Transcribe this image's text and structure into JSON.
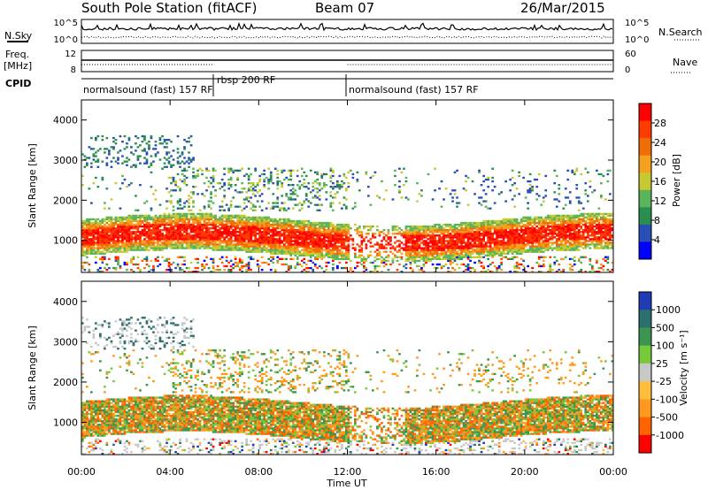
{
  "header": {
    "station": "South Pole Station (fitACF)",
    "beam": "Beam 07",
    "date": "26/Mar/2015"
  },
  "top_panels": {
    "nsky_label": "N.Sky",
    "nsearch_label": "N.Search",
    "noise_ticks_left": [
      "10^5",
      "10^0"
    ],
    "noise_ticks_right": [
      "10^5",
      "10^0"
    ],
    "freq_label_1": "Freq.",
    "freq_label_2": "[MHz]",
    "nave_label": "Nave",
    "freq_ticks": [
      "12",
      "8"
    ],
    "nave_ticks": [
      "60",
      "0"
    ],
    "cpid_label": "CPID"
  },
  "cpid_segments": [
    {
      "label": "normalsound (fast) 157 RF",
      "start": 0,
      "end": 6
    },
    {
      "label": "rbsp 200 RF",
      "start": 6,
      "end": 12
    },
    {
      "label": "normalsound (fast) 157 RF",
      "start": 12,
      "end": 24
    }
  ],
  "colors": {
    "power": [
      "#0000ff",
      "#2850b4",
      "#2a8f4e",
      "#5ab45a",
      "#c8c832",
      "#f5a01e",
      "#f06e0a",
      "#ff3c00",
      "#ff0000"
    ],
    "velocity": [
      "#ff0000",
      "#ff6400",
      "#ff9a1e",
      "#ffbe3c",
      "#c8c8c8",
      "#78c83c",
      "#3c9650",
      "#2d6e6e",
      "#1e3cb4"
    ]
  },
  "chart_data": [
    {
      "type": "heatmap",
      "quantity": "Power",
      "xlabel": "Time UT",
      "ylabel": "Slant Range [km]",
      "x_range_hours": [
        0,
        24
      ],
      "xticks": [
        "00:00",
        "04:00",
        "08:00",
        "12:00",
        "16:00",
        "20:00",
        "00:00"
      ],
      "ylim": [
        200,
        4500
      ],
      "yticks": [
        1000,
        2000,
        3000,
        4000
      ],
      "colorbar_label": "Power [dB]",
      "colorbar_ticks": [
        4,
        8,
        12,
        16,
        20,
        24,
        28
      ],
      "colorbar_range": [
        0,
        32
      ]
    },
    {
      "type": "heatmap",
      "quantity": "Velocity",
      "xlabel": "Time UT",
      "ylabel": "Slant Range [km]",
      "x_range_hours": [
        0,
        24
      ],
      "xticks": [
        "00:00",
        "04:00",
        "08:00",
        "12:00",
        "16:00",
        "20:00",
        "00:00"
      ],
      "ylim": [
        200,
        4500
      ],
      "yticks": [
        1000,
        2000,
        3000,
        4000
      ],
      "colorbar_label": "Velocity [m s⁻¹]",
      "colorbar_ticks": [
        "1000",
        "500",
        "100",
        "25",
        "-25",
        "-100",
        "-500",
        "-1000"
      ]
    }
  ]
}
